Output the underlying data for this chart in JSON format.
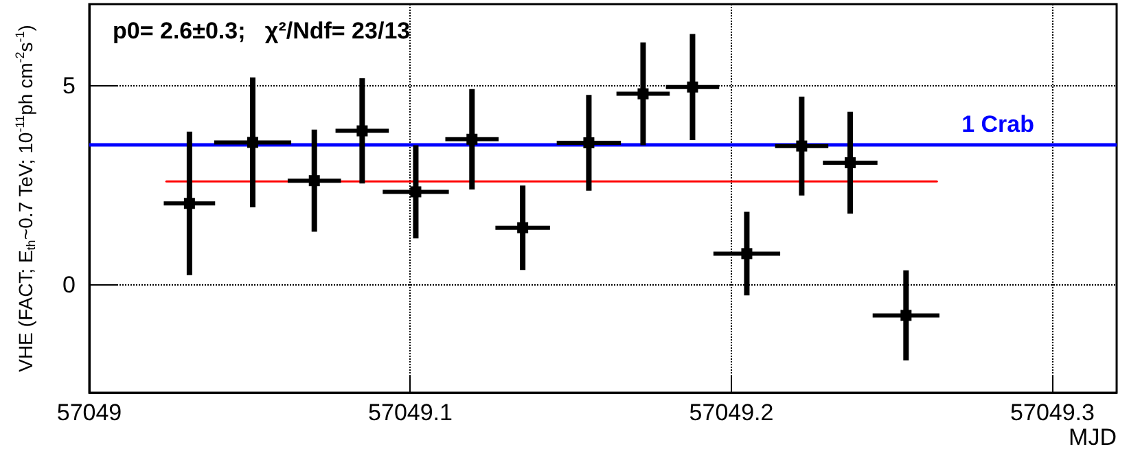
{
  "chart_data": {
    "type": "scatter",
    "xlabel": "MJD",
    "ylabel": "VHE (FACT; E$_{th}$~0.7 TeV; 10$^{-11}$ph cm$^{-2}$s$^{-1}$)",
    "annotations": [
      "p0= 2.6±0.3;   χ²/Ndf= 23/13"
    ],
    "xlim": [
      57049,
      57049.32
    ],
    "xticks": [
      57049,
      57049.1,
      57049.2,
      57049.3
    ],
    "ylim": [
      -2.7,
      7.05
    ],
    "yticks": [
      0,
      5
    ],
    "grid": true,
    "series": [
      {
        "color": "#000000",
        "marker": "square",
        "x": [
          57049.0312,
          57049.0509,
          57049.0701,
          57049.085,
          57049.1017,
          57049.1192,
          57049.135,
          57049.1556,
          57049.1725,
          57049.1879,
          57049.2048,
          57049.2219,
          57049.237,
          57049.2544
        ],
        "values": [
          2.05,
          3.58,
          2.62,
          3.87,
          2.34,
          3.66,
          1.44,
          3.57,
          4.8,
          4.97,
          0.79,
          3.49,
          3.07,
          -0.76
        ],
        "errors": [
          1.8,
          1.63,
          1.28,
          1.32,
          1.17,
          1.26,
          1.06,
          1.2,
          1.29,
          1.33,
          1.05,
          1.24,
          1.28,
          1.13
        ],
        "xerrors": [
          0.008,
          0.012,
          0.0083,
          0.0083,
          0.0103,
          0.0083,
          0.0085,
          0.01,
          0.0083,
          0.0083,
          0.0104,
          0.0083,
          0.0085,
          0.0104
        ]
      },
      {
        "type": "line",
        "color": "#ff0000",
        "x": [
          57049.024,
          57049.264
        ],
        "values": [
          2.6,
          2.6
        ]
      }
    ],
    "ref_lines": [
      {
        "axis": "y",
        "value": 3.53,
        "label": "1 Crab",
        "color": "#0000ff"
      }
    ]
  }
}
